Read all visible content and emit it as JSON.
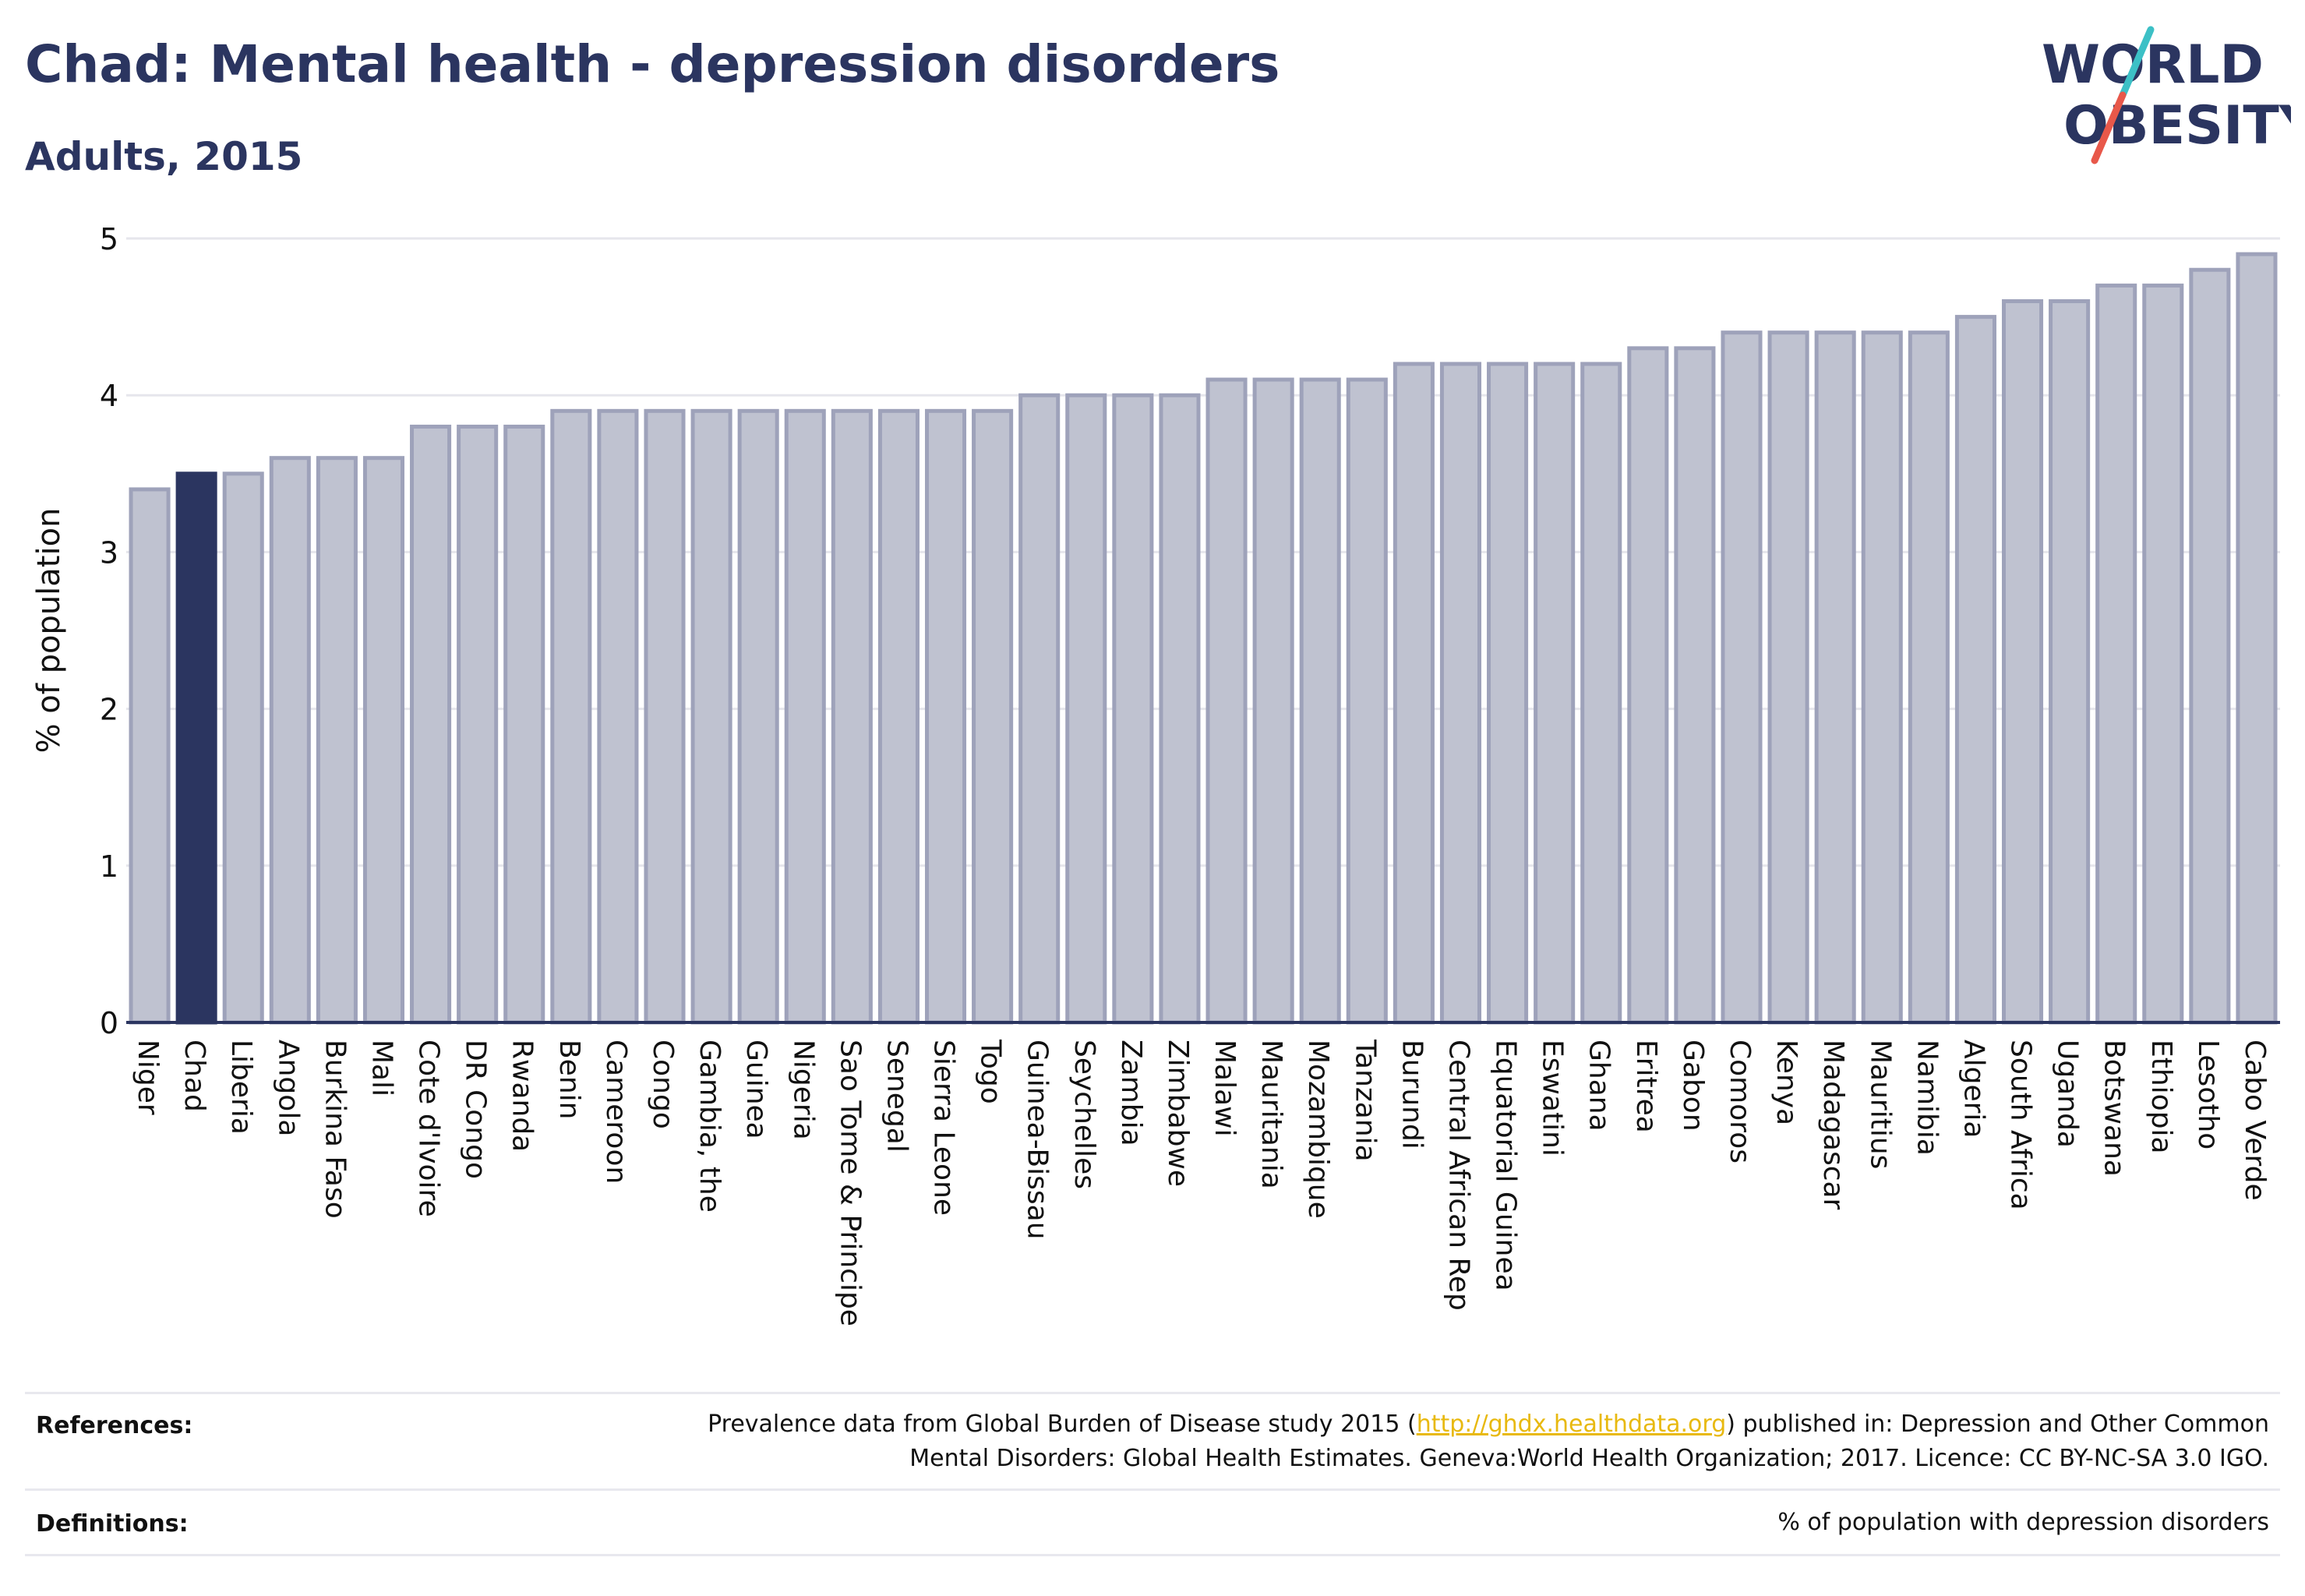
{
  "header": {
    "title": "Chad: Mental health - depression disorders",
    "subtitle": "Adults, 2015"
  },
  "logo": {
    "line1": "WORLD",
    "line2": "OBESITY"
  },
  "colors": {
    "highlight": "#2b3560",
    "bar_fill": "#bfc2d0",
    "bar_stroke": "#9ea2ba",
    "grid": "#e6e6ec",
    "axis": "#2b3560",
    "logo_teal": "#3cc0c6",
    "logo_red": "#e8584a",
    "link": "#e8b90f"
  },
  "chart_data": {
    "type": "bar",
    "ylabel": "% of population",
    "ylim": [
      0,
      5
    ],
    "yticks": [
      0,
      1,
      2,
      3,
      4,
      5
    ],
    "grid": true,
    "highlight": "Chad",
    "categories": [
      "Niger",
      "Chad",
      "Liberia",
      "Angola",
      "Burkina Faso",
      "Mali",
      "Cote d'Ivoire",
      "DR Congo",
      "Rwanda",
      "Benin",
      "Cameroon",
      "Congo",
      "Gambia, the",
      "Guinea",
      "Nigeria",
      "Sao Tome & Principe",
      "Senegal",
      "Sierra Leone",
      "Togo",
      "Guinea-Bissau",
      "Seychelles",
      "Zambia",
      "Zimbabwe",
      "Malawi",
      "Mauritania",
      "Mozambique",
      "Tanzania",
      "Burundi",
      "Central African Rep",
      "Equatorial Guinea",
      "Eswatini",
      "Ghana",
      "Eritrea",
      "Gabon",
      "Comoros",
      "Kenya",
      "Madagascar",
      "Mauritius",
      "Namibia",
      "Algeria",
      "South Africa",
      "Uganda",
      "Botswana",
      "Ethiopia",
      "Lesotho",
      "Cabo Verde"
    ],
    "values": [
      3.4,
      3.5,
      3.5,
      3.6,
      3.6,
      3.6,
      3.8,
      3.8,
      3.8,
      3.9,
      3.9,
      3.9,
      3.9,
      3.9,
      3.9,
      3.9,
      3.9,
      3.9,
      3.9,
      4.0,
      4.0,
      4.0,
      4.0,
      4.1,
      4.1,
      4.1,
      4.1,
      4.2,
      4.2,
      4.2,
      4.2,
      4.2,
      4.3,
      4.3,
      4.4,
      4.4,
      4.4,
      4.4,
      4.4,
      4.5,
      4.6,
      4.6,
      4.7,
      4.7,
      4.8,
      4.9
    ]
  },
  "footer": {
    "references_label": "References:",
    "references_line1_pre": "Prevalence data from Global Burden of Disease study 2015 (",
    "references_link": "http://ghdx.healthdata.org",
    "references_line1_post": ") published in: Depression and Other Common",
    "references_line2": "Mental Disorders: Global Health Estimates. Geneva:World Health Organization; 2017. Licence: CC BY-NC-SA 3.0 IGO.",
    "definitions_label": "Definitions:",
    "definitions_text": "% of population with depression disorders"
  }
}
